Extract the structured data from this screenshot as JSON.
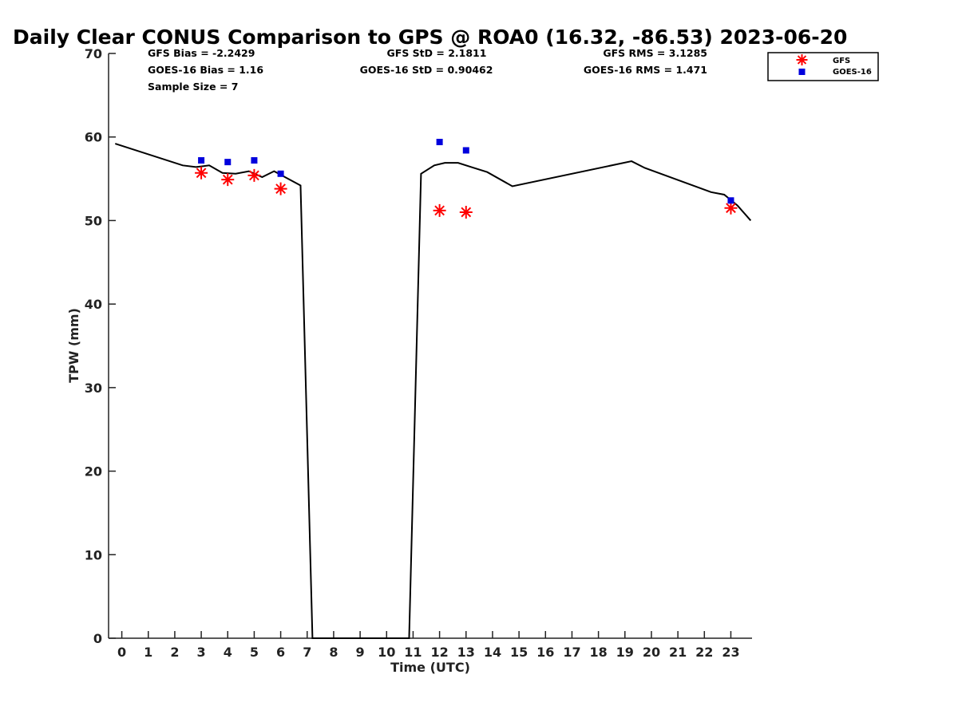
{
  "chart_data": {
    "type": "line",
    "title": "Daily Clear CONUS Comparison to GPS @ ROA0 (16.32, -86.53) 2023-06-20",
    "xlabel": "Time (UTC)",
    "ylabel": "TPW (mm)",
    "xlim": [
      -0.5,
      23.8
    ],
    "ylim": [
      0,
      70
    ],
    "xticks": [
      0,
      1,
      2,
      3,
      4,
      5,
      6,
      7,
      8,
      9,
      10,
      11,
      12,
      13,
      14,
      15,
      16,
      17,
      18,
      19,
      20,
      21,
      22,
      23
    ],
    "yticks": [
      0,
      10,
      20,
      30,
      40,
      50,
      60,
      70
    ],
    "grid": false,
    "legend_position": "top-right",
    "stats": {
      "gfs_bias": "GFS Bias = -2.2429",
      "goes_bias": "GOES-16 Bias = 1.16",
      "sample_size": "Sample Size = 7",
      "gfs_std": "GFS StD = 2.1811",
      "goes_std": "GOES-16 StD = 0.90462",
      "gfs_rms": "GFS RMS = 3.1285",
      "goes_rms": "GOES-16 RMS = 1.471"
    },
    "series": [
      {
        "kind": "line",
        "color": "#000000",
        "x": [
          -0.25,
          2.3,
          2.8,
          3.3,
          3.8,
          4.3,
          4.8,
          5.3,
          5.75,
          6.1,
          6.75,
          7.2,
          10.85,
          11.3,
          11.8,
          12.2,
          12.7,
          13.2,
          13.8,
          14.75,
          19.25,
          19.75,
          22.25,
          22.75,
          23.25,
          23.75
        ],
        "y": [
          59.2,
          56.6,
          56.4,
          56.6,
          55.7,
          55.6,
          55.9,
          55.2,
          55.9,
          55.3,
          54.2,
          0,
          0,
          55.6,
          56.6,
          56.9,
          56.9,
          56.4,
          55.8,
          54.1,
          57.1,
          56.3,
          53.4,
          53.1,
          51.8,
          50.0
        ]
      },
      {
        "name": "GFS",
        "kind": "star",
        "color": "#ff0000",
        "x": [
          3,
          4,
          5,
          6,
          12,
          13,
          23
        ],
        "y": [
          55.7,
          54.9,
          55.4,
          53.8,
          51.2,
          51.0,
          51.5
        ]
      },
      {
        "name": "GOES-16",
        "kind": "square",
        "color": "#0000dd",
        "x": [
          3,
          4,
          5,
          6,
          12,
          13,
          23
        ],
        "y": [
          57.2,
          57.0,
          57.2,
          55.6,
          59.4,
          58.4,
          52.4
        ]
      }
    ]
  }
}
